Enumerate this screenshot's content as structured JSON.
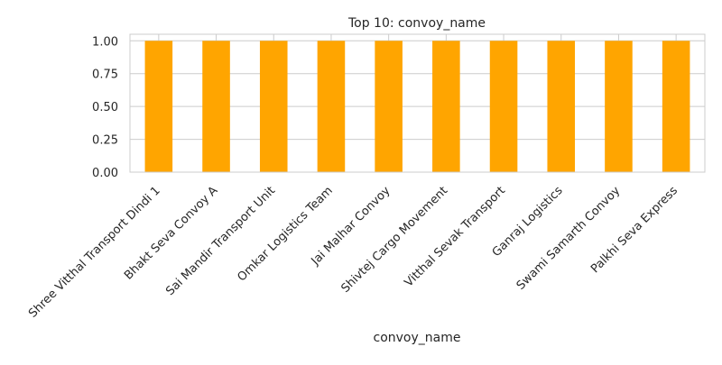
{
  "chart_data": {
    "type": "bar",
    "title": "Top 10: convoy_name",
    "xlabel": "convoy_name",
    "ylabel": "",
    "categories": [
      "Shree Vitthal Transport Dindi 1",
      "Bhakt Seva Convoy A",
      "Sai Mandir Transport Unit",
      "Omkar Logistics Team",
      "Jai Malhar Convoy",
      "Shivtej Cargo Movement",
      "Vitthal Sevak Transport",
      "Ganraj Logistics",
      "Swami Samarth Convoy",
      "Palkhi Seva Express"
    ],
    "values": [
      1,
      1,
      1,
      1,
      1,
      1,
      1,
      1,
      1,
      1
    ],
    "ylim": [
      0,
      1.05
    ],
    "yticks": [
      "0.00",
      "0.25",
      "0.50",
      "0.75",
      "1.00"
    ],
    "grid": true,
    "bar_color": "#FFA500"
  }
}
